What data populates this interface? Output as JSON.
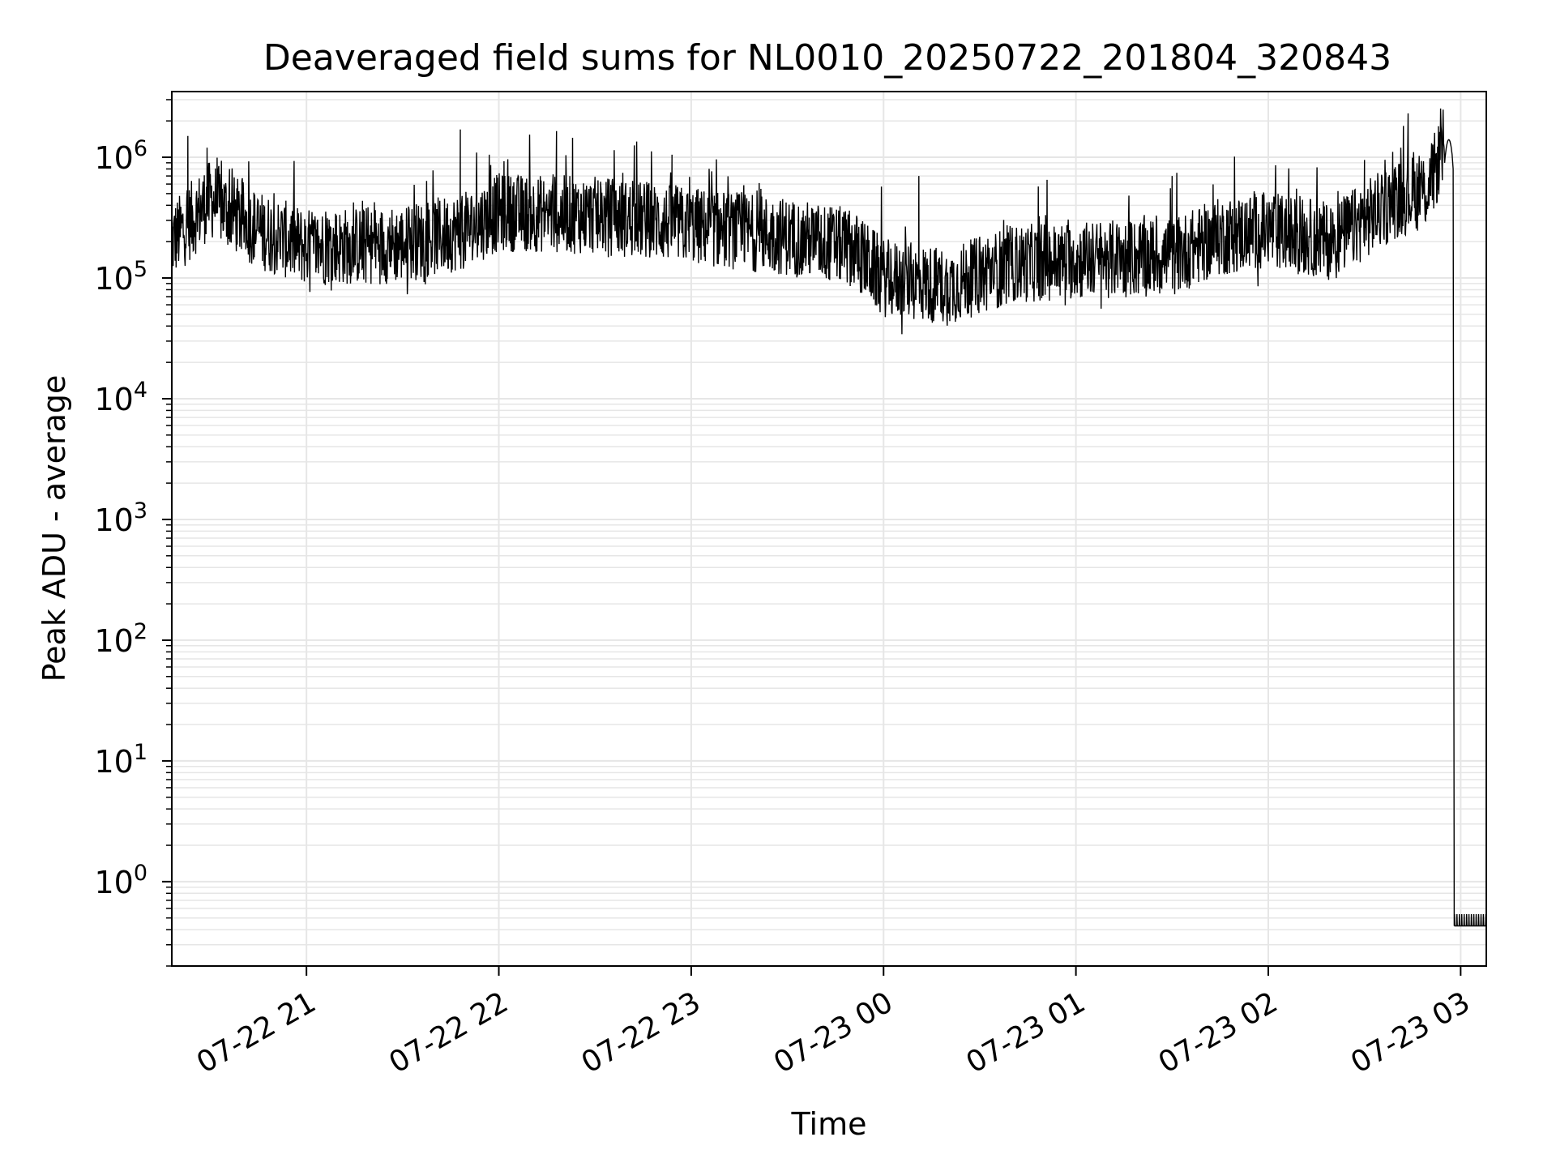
{
  "chart_data": {
    "type": "line",
    "title": "Deaveraged field sums for NL0010_20250722_201804_320843",
    "xlabel": "Time",
    "ylabel": "Peak ADU - average",
    "y_scale": "log",
    "ylim": [
      0.2,
      3500000
    ],
    "xlim": [
      "2025-07-22 20:18",
      "2025-07-23 03:08"
    ],
    "grid": true,
    "legend": "none",
    "line_color": "#000000",
    "grid_color": "#e6e6e6",
    "x_ticks": [
      {
        "t": "2025-07-22 21:00",
        "label": "07-22 21"
      },
      {
        "t": "2025-07-22 22:00",
        "label": "07-22 22"
      },
      {
        "t": "2025-07-22 23:00",
        "label": "07-22 23"
      },
      {
        "t": "2025-07-23 00:00",
        "label": "07-23 00"
      },
      {
        "t": "2025-07-23 01:00",
        "label": "07-23 01"
      },
      {
        "t": "2025-07-23 02:00",
        "label": "07-23 02"
      },
      {
        "t": "2025-07-23 03:00",
        "label": "07-23 03"
      }
    ],
    "y_ticks": [
      {
        "v": 1,
        "base": "10",
        "exp": "0"
      },
      {
        "v": 10,
        "base": "10",
        "exp": "1"
      },
      {
        "v": 100,
        "base": "10",
        "exp": "2"
      },
      {
        "v": 1000,
        "base": "10",
        "exp": "3"
      },
      {
        "v": 10000,
        "base": "10",
        "exp": "4"
      },
      {
        "v": 100000,
        "base": "10",
        "exp": "5"
      },
      {
        "v": 1000000,
        "base": "10",
        "exp": "6"
      }
    ],
    "series": [
      {
        "baseline": [
          [
            "2025-07-22 20:18",
            200000
          ],
          [
            "2025-07-22 20:30",
            450000
          ],
          [
            "2025-07-22 20:45",
            250000
          ],
          [
            "2025-07-22 21:00",
            180000
          ],
          [
            "2025-07-22 21:30",
            190000
          ],
          [
            "2025-07-22 21:50",
            250000
          ],
          [
            "2025-07-22 22:00",
            350000
          ],
          [
            "2025-07-22 22:30",
            330000
          ],
          [
            "2025-07-22 23:00",
            270000
          ],
          [
            "2025-07-22 23:30",
            220000
          ],
          [
            "2025-07-22 23:50",
            180000
          ],
          [
            "2025-07-23 00:00",
            100000
          ],
          [
            "2025-07-23 00:20",
            85000
          ],
          [
            "2025-07-23 00:40",
            130000
          ],
          [
            "2025-07-23 01:00",
            140000
          ],
          [
            "2025-07-23 01:30",
            150000
          ],
          [
            "2025-07-23 01:45",
            220000
          ],
          [
            "2025-07-23 02:00",
            250000
          ],
          [
            "2025-07-23 02:20",
            200000
          ],
          [
            "2025-07-23 02:40",
            450000
          ],
          [
            "2025-07-23 02:50",
            550000
          ],
          [
            "2025-07-23 02:55",
            1300000
          ]
        ],
        "spikes": [
          [
            "2025-07-22 20:23",
            1500000
          ],
          [
            "2025-07-22 20:29",
            1200000
          ],
          [
            "2025-07-22 20:36",
            800000
          ],
          [
            "2025-07-22 21:48",
            1700000
          ],
          [
            "2025-07-22 21:57",
            1050000
          ],
          [
            "2025-07-22 22:18",
            1650000
          ],
          [
            "2025-07-22 22:23",
            1450000
          ],
          [
            "2025-07-22 22:43",
            1350000
          ],
          [
            "2025-07-22 22:54",
            1050000
          ],
          [
            "2025-07-23 00:11",
            700000
          ],
          [
            "2025-07-23 00:51",
            650000
          ],
          [
            "2025-07-23 01:30",
            700000
          ],
          [
            "2025-07-23 02:30",
            950000
          ]
        ],
        "drop_time": "2025-07-23 02:58",
        "floor_value": 0.43,
        "end_time": "2025-07-23 03:08"
      }
    ]
  }
}
